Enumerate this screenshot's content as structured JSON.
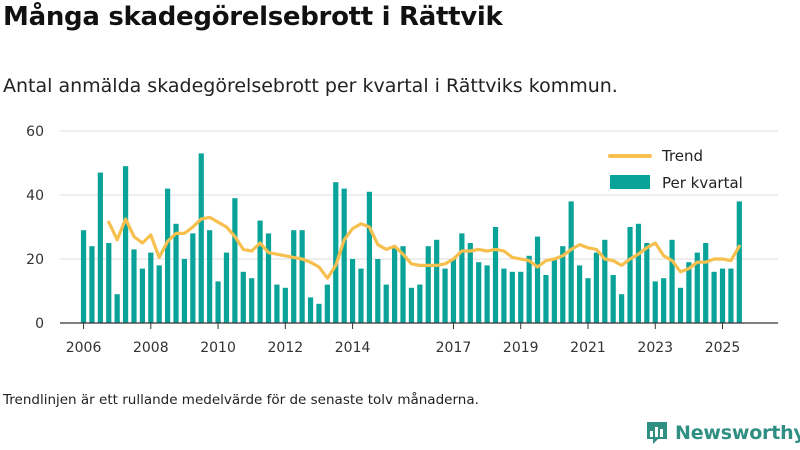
{
  "title": "Många skadegörelsebrott i Rättvik",
  "subtitle": "Antal anmälda skadegörelsebrott per kvartal i Rättviks kommun.",
  "footnote": "Trendlinjen är ett rullande medelvärde för de senaste tolv månaderna.",
  "brand": {
    "name": "Newsworthy",
    "logo": "newsworthy-logo-icon"
  },
  "colors": {
    "bars": "#0aa39a",
    "trend": "#f7bf4e",
    "grid": "#dcdcdc",
    "axis": "#333333"
  },
  "chart_data": {
    "type": "bar",
    "ylim": [
      0,
      60
    ],
    "yticks": [
      0,
      20,
      40,
      60
    ],
    "xtick_labels": [
      "2006",
      "2008",
      "2010",
      "2012",
      "2014",
      "2017",
      "2019",
      "2021",
      "2023",
      "2025"
    ],
    "xtick_positions": [
      2006,
      2008,
      2010,
      2012,
      2014,
      2017,
      2019,
      2021,
      2023,
      2025
    ],
    "x_domain": [
      2005.3,
      2026.65
    ],
    "grid": true,
    "legend_position": "top-right",
    "series": [
      {
        "name": "Per kvartal",
        "kind": "bar",
        "x": [
          2006,
          2006.25,
          2006.5,
          2006.75,
          2007,
          2007.25,
          2007.5,
          2007.75,
          2008,
          2008.25,
          2008.5,
          2008.75,
          2009,
          2009.25,
          2009.5,
          2009.75,
          2010,
          2010.25,
          2010.5,
          2010.75,
          2011,
          2011.25,
          2011.5,
          2011.75,
          2012,
          2012.25,
          2012.5,
          2012.75,
          2013,
          2013.25,
          2013.5,
          2013.75,
          2014,
          2014.25,
          2014.5,
          2014.75,
          2015,
          2015.25,
          2015.5,
          2015.75,
          2016,
          2016.25,
          2016.5,
          2016.75,
          2017,
          2017.25,
          2017.5,
          2017.75,
          2018,
          2018.25,
          2018.5,
          2018.75,
          2019,
          2019.25,
          2019.5,
          2019.75,
          2020,
          2020.25,
          2020.5,
          2020.75,
          2021,
          2021.25,
          2021.5,
          2021.75,
          2022,
          2022.25,
          2022.5,
          2022.75,
          2023,
          2023.25,
          2023.5,
          2023.75,
          2024,
          2024.25,
          2024.5,
          2024.75,
          2025,
          2025.25,
          2025.5
        ],
        "values": [
          29,
          24,
          47,
          25,
          9,
          49,
          23,
          17,
          22,
          18,
          42,
          31,
          20,
          28,
          53,
          29,
          13,
          22,
          39,
          16,
          14,
          32,
          28,
          12,
          11,
          29,
          29,
          8,
          6,
          12,
          44,
          42,
          20,
          17,
          41,
          20,
          12,
          24,
          24,
          11,
          12,
          24,
          26,
          17,
          20,
          28,
          25,
          19,
          18,
          30,
          17,
          16,
          16,
          21,
          27,
          15,
          20,
          24,
          38,
          18,
          14,
          22,
          26,
          15,
          9,
          30,
          31,
          25,
          13,
          14,
          26,
          11,
          19,
          22,
          25,
          16,
          17,
          17,
          38
        ]
      },
      {
        "name": "Trend",
        "kind": "line",
        "x": [
          2006.75,
          2007,
          2007.25,
          2007.5,
          2007.75,
          2008,
          2008.25,
          2008.5,
          2008.75,
          2009,
          2009.25,
          2009.5,
          2009.75,
          2010,
          2010.25,
          2010.5,
          2010.75,
          2011,
          2011.25,
          2011.5,
          2011.75,
          2012,
          2012.25,
          2012.5,
          2012.75,
          2013,
          2013.25,
          2013.5,
          2013.75,
          2014,
          2014.25,
          2014.5,
          2014.75,
          2015,
          2015.25,
          2015.5,
          2015.75,
          2016,
          2016.25,
          2016.5,
          2016.75,
          2017,
          2017.25,
          2017.5,
          2017.75,
          2018,
          2018.25,
          2018.5,
          2018.75,
          2019,
          2019.25,
          2019.5,
          2019.75,
          2020,
          2020.25,
          2020.5,
          2020.75,
          2021,
          2021.25,
          2021.5,
          2021.75,
          2022,
          2022.25,
          2022.5,
          2022.75,
          2023,
          2023.25,
          2023.5,
          2023.75,
          2024,
          2024.25,
          2024.5,
          2024.75,
          2025,
          2025.25,
          2025.5
        ],
        "values": [
          31.5,
          26,
          32.5,
          27,
          25,
          27.5,
          20.5,
          25.5,
          28,
          28,
          30,
          32.5,
          33,
          31.5,
          30,
          27,
          23,
          22.5,
          25,
          22,
          21.5,
          21,
          20.5,
          20,
          19,
          17.5,
          14,
          18,
          26,
          29.5,
          31,
          30,
          24.5,
          23,
          24,
          21.5,
          18.5,
          18,
          18,
          18,
          18.5,
          20,
          22.5,
          22.5,
          23,
          22.5,
          23,
          22.5,
          20.5,
          20,
          19.5,
          17.5,
          19.5,
          20,
          21,
          23,
          24.5,
          23.5,
          23,
          20,
          19.5,
          18,
          20,
          21.5,
          23.5,
          25,
          21,
          19.5,
          16,
          17,
          19,
          19,
          20,
          20,
          19.5,
          24
        ]
      }
    ]
  }
}
